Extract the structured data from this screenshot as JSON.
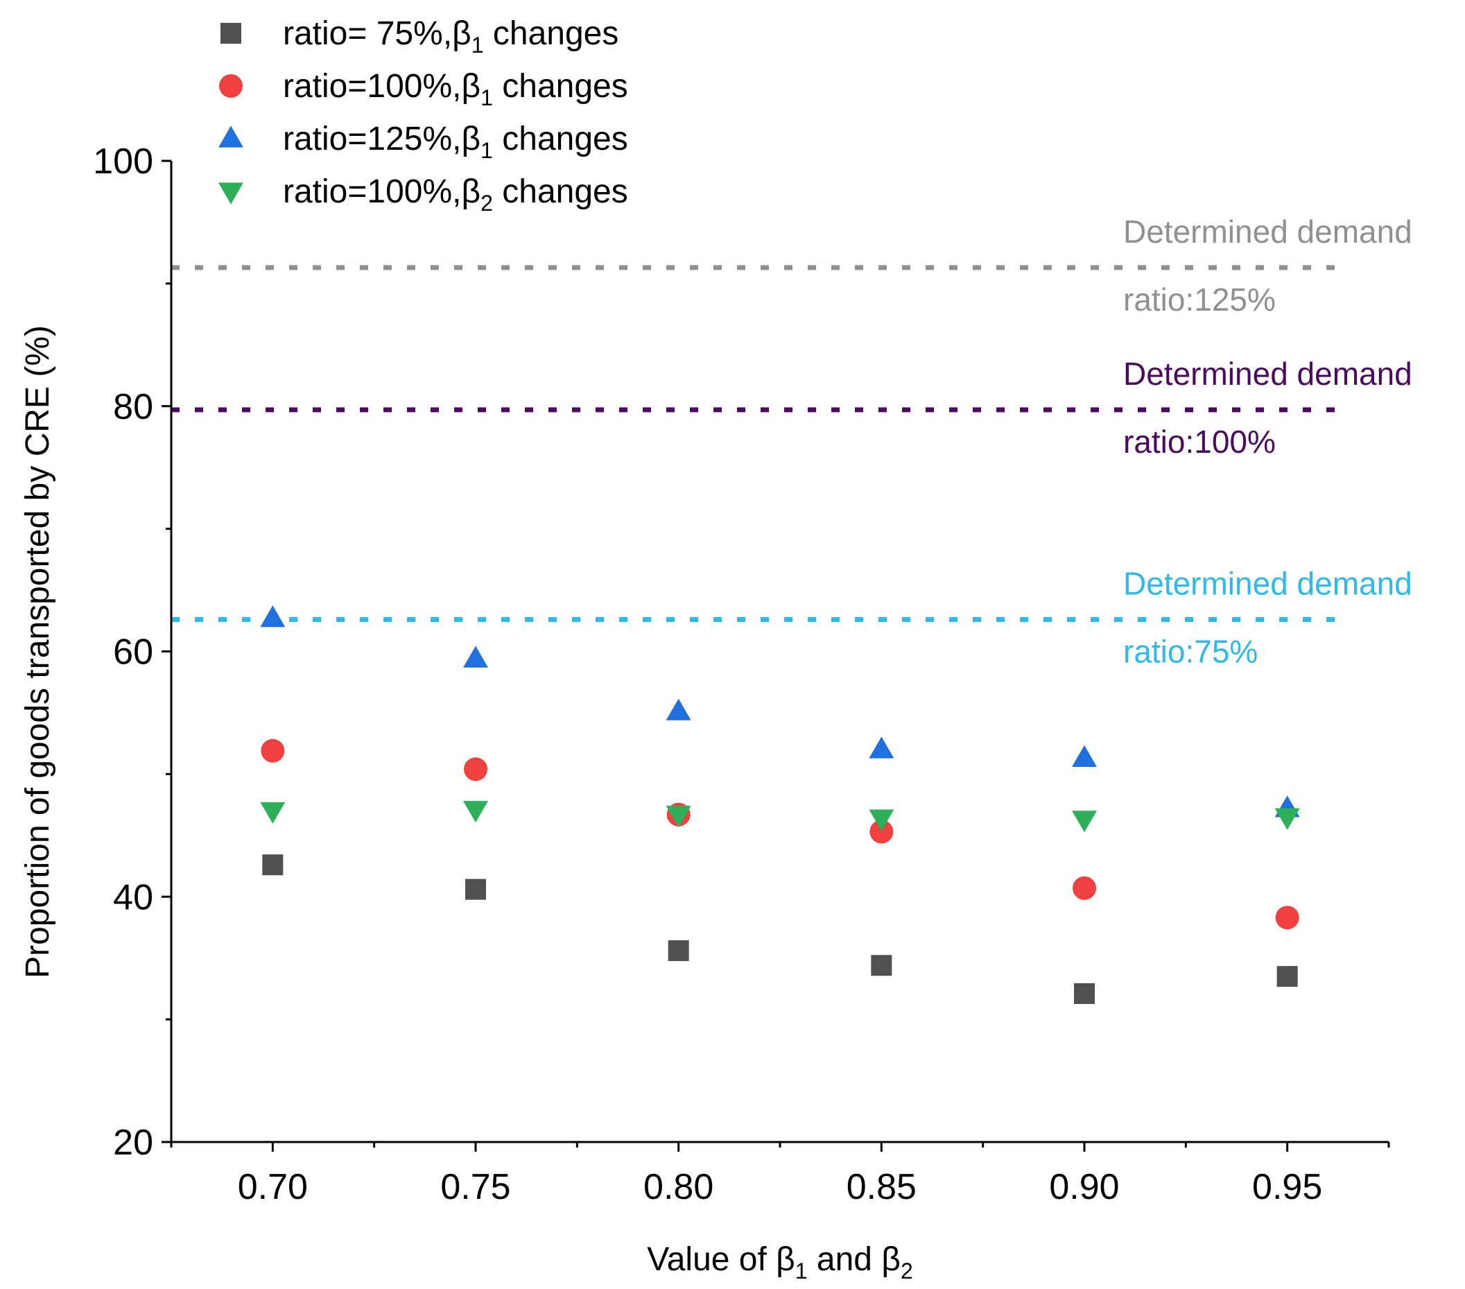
{
  "chart_data": {
    "type": "scatter",
    "title": "",
    "xlabel": "Value of β1 and β2",
    "ylabel": "Proportion of goods transported by CRE (%)",
    "x": [
      0.7,
      0.75,
      0.8,
      0.85,
      0.9,
      0.95
    ],
    "x_tick_labels": [
      "0.70",
      "0.75",
      "0.80",
      "0.85",
      "0.90",
      "0.95"
    ],
    "xlim": [
      0.675,
      0.975
    ],
    "ylim": [
      20,
      100
    ],
    "y_ticks": [
      20,
      40,
      60,
      80,
      100
    ],
    "y_tick_labels": [
      "20",
      "40",
      "60",
      "80",
      "100"
    ],
    "legend_position": "top-left",
    "grid": false,
    "series": [
      {
        "name": "ratio=  75%,β1 changes",
        "legend_prefix": "ratio=  75%,β",
        "legend_sub": "1",
        "legend_suffix": " changes",
        "marker": "square",
        "color": "#505050",
        "values": [
          42.6,
          40.6,
          35.6,
          34.4,
          32.1,
          33.5
        ]
      },
      {
        "name": "ratio=100%,β1 changes",
        "legend_prefix": "ratio=100%,β",
        "legend_sub": "1",
        "legend_suffix": " changes",
        "marker": "circle",
        "color": "#f04040",
        "values": [
          51.9,
          50.4,
          46.7,
          45.3,
          40.7,
          38.3
        ]
      },
      {
        "name": "ratio=125%,β1 changes",
        "legend_prefix": "ratio=125%,β",
        "legend_sub": "1",
        "legend_suffix": " changes",
        "marker": "triangle-up",
        "color": "#2070e0",
        "values": [
          62.7,
          59.4,
          55.1,
          52.0,
          51.3,
          47.2
        ]
      },
      {
        "name": "ratio=100%,β2 changes",
        "legend_prefix": "ratio=100%,β",
        "legend_sub": "2",
        "legend_suffix": " changes",
        "marker": "triangle-down",
        "color": "#2eb05a",
        "values": [
          47.0,
          47.1,
          46.7,
          46.4,
          46.3,
          46.5
        ]
      }
    ],
    "reference_lines": [
      {
        "name": "Determined demand ratio:125%",
        "label_top": "Determined demand",
        "label_bottom": "ratio:125%",
        "value": 91.3,
        "color": "#909090"
      },
      {
        "name": "Determined demand ratio:100%",
        "label_top": "Determined demand",
        "label_bottom": "ratio:100%",
        "value": 79.7,
        "color": "#4b0a5e"
      },
      {
        "name": "Determined demand ratio:75%",
        "label_top": "Determined demand",
        "label_bottom": "ratio:75%",
        "value": 62.6,
        "color": "#30b8e8"
      }
    ]
  }
}
